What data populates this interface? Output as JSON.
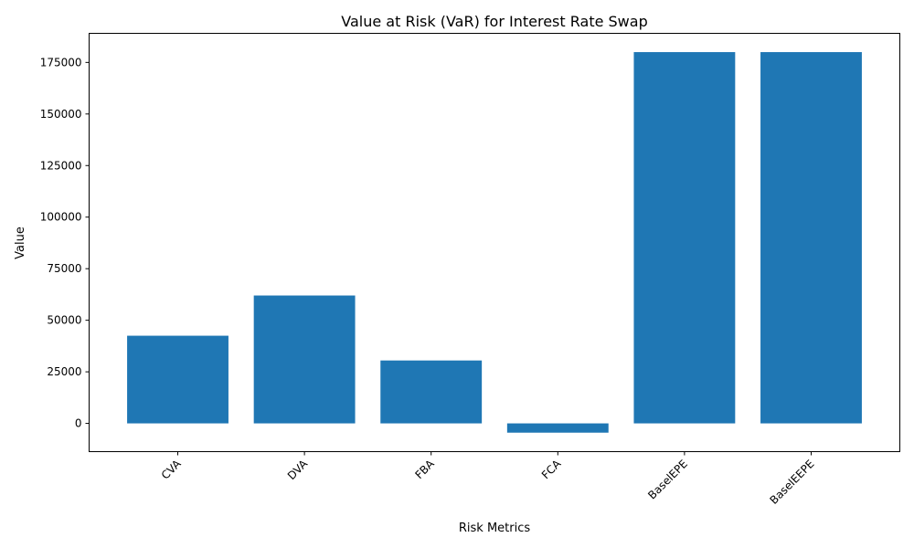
{
  "chart_data": {
    "type": "bar",
    "title": "Value at Risk (VaR) for Interest Rate Swap",
    "xlabel": "Risk Metrics",
    "ylabel": "Value",
    "categories": [
      "CVA",
      "DVA",
      "FBA",
      "FCA",
      "BaselEPE",
      "BaselEEPE"
    ],
    "values": [
      42500,
      62000,
      30500,
      -4500,
      180000,
      180000
    ],
    "ylim": [
      -13700,
      189100
    ],
    "yticks": [
      0,
      25000,
      50000,
      75000,
      100000,
      125000,
      150000,
      175000
    ],
    "colors": {
      "bar": "#1f77b4"
    },
    "grid": false,
    "xtick_rotation": 45
  }
}
